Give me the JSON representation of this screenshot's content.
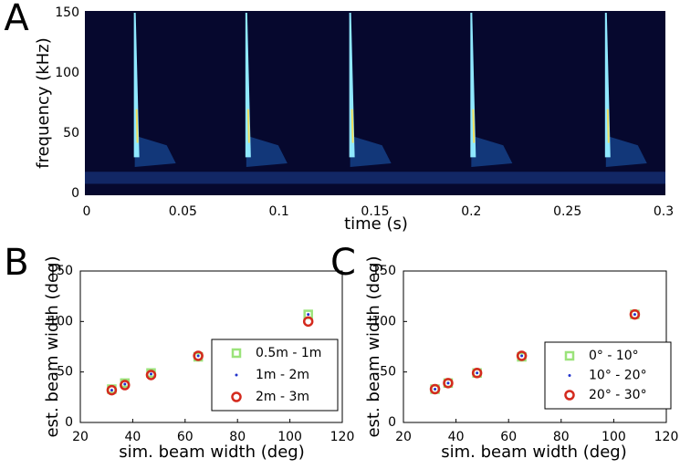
{
  "chart_data": [
    {
      "type": "spectrogram",
      "panel": "A",
      "xlabel": "time (s)",
      "ylabel": "frequency (kHz)",
      "xlim": [
        0,
        0.3
      ],
      "ylim": [
        0,
        150
      ],
      "xticks": [
        0,
        0.05,
        0.1,
        0.15,
        0.2,
        0.25,
        0.3
      ],
      "yticks": [
        0,
        50,
        100,
        150
      ],
      "call_times": [
        0.025,
        0.083,
        0.137,
        0.2,
        0.27
      ]
    },
    {
      "type": "scatter",
      "panel": "B",
      "xlabel": "sim. beam width (deg)",
      "ylabel": "est. beam width (deg)",
      "xlim": [
        20,
        120
      ],
      "ylim": [
        0,
        150
      ],
      "xticks": [
        20,
        40,
        60,
        80,
        100,
        120
      ],
      "yticks": [
        0,
        50,
        100,
        150
      ],
      "x": [
        32,
        37,
        47,
        65,
        107
      ],
      "series": [
        {
          "name": "0.5m - 1m",
          "color": "#9be37a",
          "marker": "square",
          "values": [
            33,
            39,
            49,
            65,
            107
          ]
        },
        {
          "name": "1m - 2m",
          "color": "#2233cc",
          "marker": "dot",
          "values": [
            32,
            38,
            48,
            66,
            107
          ]
        },
        {
          "name": "2m - 3m",
          "color": "#d42a1e",
          "marker": "circle",
          "values": [
            32,
            37,
            47,
            66,
            100
          ]
        }
      ]
    },
    {
      "type": "scatter",
      "panel": "C",
      "xlabel": "sim. beam width (deg)",
      "ylabel": "est. beam width (deg)",
      "xlim": [
        20,
        120
      ],
      "ylim": [
        0,
        150
      ],
      "xticks": [
        20,
        40,
        60,
        80,
        100,
        120
      ],
      "yticks": [
        0,
        50,
        100,
        150
      ],
      "x": [
        32,
        37,
        48,
        65,
        108
      ],
      "series": [
        {
          "name": "0° - 10°",
          "color": "#9be37a",
          "marker": "square",
          "values": [
            33,
            39,
            49,
            65,
            107
          ]
        },
        {
          "name": "10° - 20°",
          "color": "#2233cc",
          "marker": "dot",
          "values": [
            33,
            39,
            49,
            66,
            107
          ]
        },
        {
          "name": "20° - 30°",
          "color": "#d42a1e",
          "marker": "circle",
          "values": [
            33,
            39,
            49,
            66,
            107
          ]
        }
      ]
    }
  ]
}
